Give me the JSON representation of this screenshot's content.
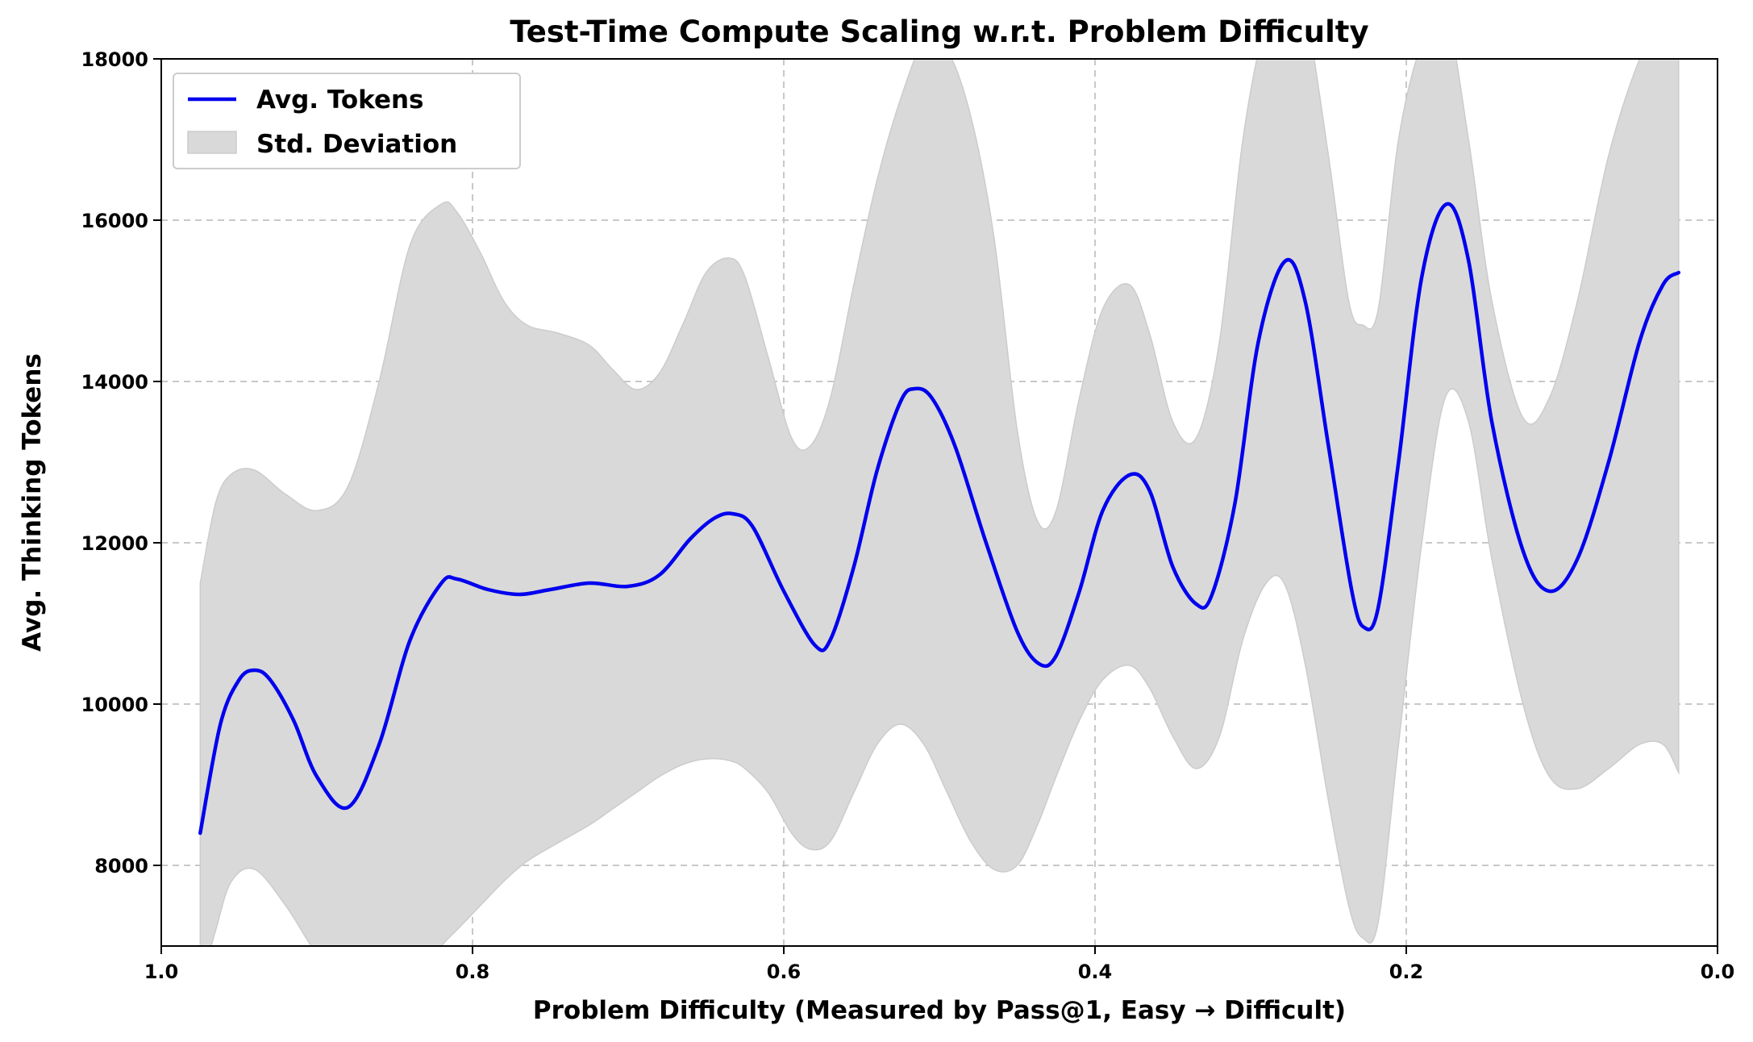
{
  "chart_data": {
    "type": "line",
    "title": "Test-Time Compute Scaling w.r.t. Problem Difficulty",
    "xlabel": "Problem Difficulty (Measured by Pass@1, Easy → Difficult)",
    "ylabel": "Avg. Thinking Tokens",
    "xlim": [
      1.0,
      0.0
    ],
    "ylim": [
      7000,
      18000
    ],
    "x_inverted": true,
    "xticks": [
      1.0,
      0.8,
      0.6,
      0.4,
      0.2,
      0.0
    ],
    "xtick_labels": [
      "1.0",
      "0.8",
      "0.6",
      "0.4",
      "0.2",
      "0.0"
    ],
    "yticks": [
      8000,
      10000,
      12000,
      14000,
      16000,
      18000
    ],
    "ytick_labels": [
      "8000",
      "10000",
      "12000",
      "14000",
      "16000",
      "18000"
    ],
    "grid": true,
    "legend_position": "top-left",
    "series": [
      {
        "name": "Avg. Tokens",
        "kind": "line",
        "color": "#0000ee",
        "x": [
          0.975,
          0.962,
          0.95,
          0.94,
          0.93,
          0.915,
          0.9,
          0.88,
          0.86,
          0.84,
          0.82,
          0.81,
          0.79,
          0.77,
          0.75,
          0.725,
          0.7,
          0.68,
          0.66,
          0.645,
          0.633,
          0.62,
          0.6,
          0.58,
          0.57,
          0.555,
          0.54,
          0.525,
          0.516,
          0.505,
          0.49,
          0.47,
          0.45,
          0.436,
          0.425,
          0.41,
          0.395,
          0.378,
          0.365,
          0.35,
          0.335,
          0.325,
          0.31,
          0.295,
          0.278,
          0.265,
          0.25,
          0.235,
          0.227,
          0.218,
          0.205,
          0.19,
          0.174,
          0.16,
          0.145,
          0.125,
          0.108,
          0.09,
          0.07,
          0.05,
          0.035,
          0.025
        ],
        "values": [
          8400,
          9750,
          10300,
          10420,
          10300,
          9800,
          9100,
          8720,
          9500,
          10800,
          11500,
          11550,
          11420,
          11360,
          11420,
          11500,
          11460,
          11600,
          12050,
          12300,
          12360,
          12200,
          11400,
          10730,
          10800,
          11700,
          12900,
          13750,
          13910,
          13800,
          13200,
          12000,
          10900,
          10500,
          10600,
          11400,
          12400,
          12840,
          12650,
          11700,
          11240,
          11350,
          12500,
          14500,
          15490,
          15000,
          13200,
          11400,
          10950,
          11200,
          13000,
          15300,
          16200,
          15500,
          13500,
          11900,
          11400,
          11800,
          13000,
          14500,
          15200,
          15350
        ]
      },
      {
        "name": "Std. Deviation",
        "kind": "band",
        "color": "#d9d9d9",
        "x": [
          0.975,
          0.965,
          0.955,
          0.94,
          0.92,
          0.9,
          0.88,
          0.86,
          0.84,
          0.82,
          0.81,
          0.795,
          0.78,
          0.765,
          0.745,
          0.725,
          0.71,
          0.695,
          0.68,
          0.665,
          0.65,
          0.635,
          0.625,
          0.61,
          0.595,
          0.583,
          0.57,
          0.555,
          0.54,
          0.525,
          0.51,
          0.495,
          0.48,
          0.465,
          0.45,
          0.437,
          0.425,
          0.41,
          0.395,
          0.378,
          0.365,
          0.35,
          0.335,
          0.32,
          0.305,
          0.29,
          0.278,
          0.265,
          0.25,
          0.237,
          0.228,
          0.218,
          0.205,
          0.19,
          0.175,
          0.16,
          0.145,
          0.125,
          0.108,
          0.09,
          0.07,
          0.05,
          0.035,
          0.025
        ],
        "upper": [
          11500,
          12500,
          12850,
          12900,
          12600,
          12400,
          12700,
          14000,
          15700,
          16200,
          16100,
          15600,
          15000,
          14700,
          14600,
          14450,
          14150,
          13900,
          14100,
          14700,
          15350,
          15530,
          15300,
          14300,
          13300,
          13200,
          13800,
          15200,
          16500,
          17500,
          18200,
          18100,
          17300,
          15800,
          13400,
          12270,
          12400,
          13800,
          14900,
          15200,
          14600,
          13500,
          13300,
          14500,
          17000,
          18500,
          19000,
          18600,
          16800,
          15000,
          14700,
          14900,
          17000,
          18200,
          18600,
          17000,
          15000,
          13550,
          13800,
          15000,
          16800,
          18000,
          18500,
          18000
        ],
        "lower": [
          6500,
          7200,
          7800,
          7950,
          7500,
          6900,
          6500,
          6400,
          6500,
          7000,
          7200,
          7500,
          7800,
          8050,
          8280,
          8500,
          8700,
          8900,
          9100,
          9250,
          9320,
          9300,
          9200,
          8900,
          8400,
          8200,
          8300,
          8900,
          9500,
          9750,
          9500,
          8900,
          8300,
          7950,
          8000,
          8500,
          9100,
          9800,
          10300,
          10480,
          10200,
          9600,
          9200,
          9600,
          10800,
          11500,
          11480,
          10500,
          8800,
          7500,
          7100,
          7300,
          9500,
          12000,
          13800,
          13500,
          11800,
          10000,
          9100,
          8950,
          9200,
          9500,
          9500,
          9150
        ]
      }
    ]
  }
}
